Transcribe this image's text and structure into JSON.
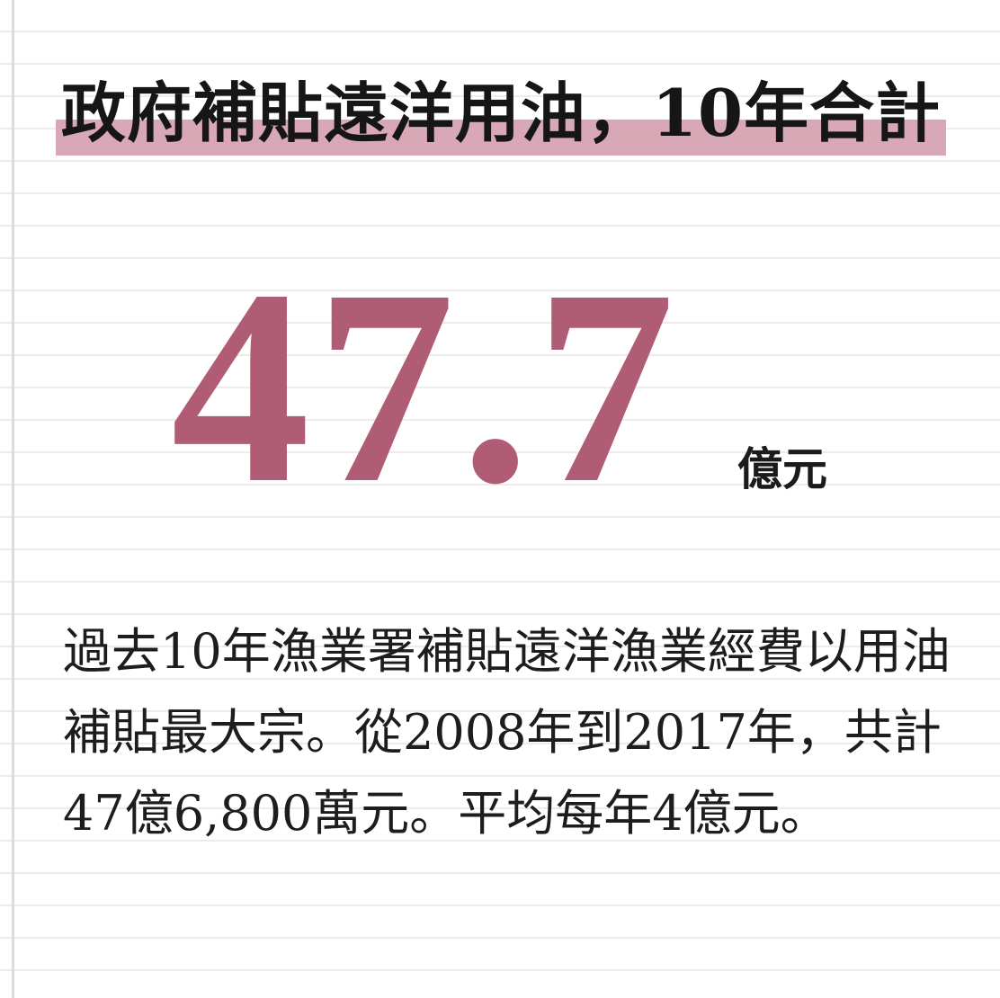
{
  "title": "政府補貼遠洋用油，10年合計",
  "highlight": {
    "value": "47.7",
    "unit": "億元"
  },
  "description": "過去10年漁業署補貼遠洋漁業經費以用油補貼最大宗。從2008年到2017年，共計47億6,800萬元。平均每年4億元。",
  "colors": {
    "accent": "#b05c74",
    "title_highlight": "#d8a8b6",
    "text": "#1d1d1d",
    "rule_line": "#ececec"
  }
}
